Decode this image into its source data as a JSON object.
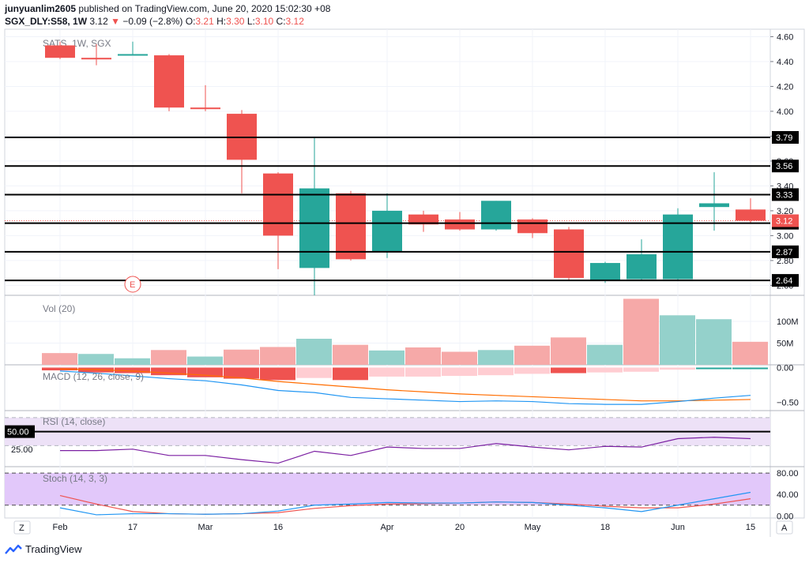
{
  "header": {
    "author": "junyuanlim2605",
    "published_text": "published on TradingView.com, June 20, 2020 15:02:30 +08",
    "symbol": "SGX_DLY:S58, 1W",
    "last": "3.12",
    "change": "−0.09 (−2.8%)",
    "o_label": "O:",
    "o": "3.21",
    "h_label": "H:",
    "h": "3.30",
    "l_label": "L:",
    "l": "3.10",
    "c_label": "C:",
    "c": "3.12"
  },
  "footer": {
    "brand": "TradingView",
    "z_button": "Z",
    "a_button": "A"
  },
  "colors": {
    "up": "#26a69a",
    "down": "#ef5350",
    "vol_up": "#94d1cb",
    "vol_down": "#f6a9a8",
    "macd_line": "#2196f3",
    "signal_line": "#ff6d00",
    "rsi_line": "#7b1fa2",
    "stoch_k": "#2196f3",
    "stoch_d": "#ef5350"
  },
  "chart_data": [
    {
      "type": "candlestick",
      "title": "SATS, 1W, SGX",
      "x": [
        "2020-02-03",
        "2020-02-10",
        "2020-02-17",
        "2020-02-24",
        "2020-03-02",
        "2020-03-09",
        "2020-03-16",
        "2020-03-23",
        "2020-03-30",
        "2020-04-06",
        "2020-04-13",
        "2020-04-20",
        "2020-04-27",
        "2020-05-04",
        "2020-05-11",
        "2020-05-18",
        "2020-05-25",
        "2020-06-01",
        "2020-06-08",
        "2020-06-15"
      ],
      "open": [
        4.53,
        4.43,
        4.46,
        4.45,
        4.03,
        3.98,
        3.5,
        2.74,
        3.34,
        2.87,
        3.17,
        3.13,
        3.05,
        3.13,
        3.05,
        2.64,
        2.65,
        2.65,
        3.23,
        3.21
      ],
      "high": [
        4.56,
        4.54,
        4.56,
        4.46,
        4.21,
        4.01,
        3.51,
        3.79,
        3.36,
        3.34,
        3.2,
        3.19,
        3.28,
        3.14,
        3.07,
        2.79,
        2.97,
        3.22,
        3.51,
        3.3
      ],
      "low": [
        4.42,
        4.37,
        4.45,
        4.0,
        4.0,
        3.34,
        2.73,
        2.52,
        2.8,
        2.82,
        3.03,
        3.04,
        3.04,
        2.98,
        2.64,
        2.62,
        2.64,
        2.64,
        3.04,
        3.1
      ],
      "close": [
        4.43,
        4.42,
        4.46,
        4.03,
        4.02,
        3.61,
        3.0,
        3.38,
        2.81,
        3.2,
        3.09,
        3.05,
        3.28,
        3.02,
        2.66,
        2.78,
        2.85,
        3.17,
        3.26,
        3.12
      ],
      "price_axis_ticks": [
        "4.60",
        "4.40",
        "4.20",
        "4.00",
        "3.80",
        "3.60",
        "3.40",
        "3.20",
        "3.00",
        "2.80",
        "2.60"
      ],
      "ylim": [
        2.52,
        4.66
      ],
      "time_axis_labels": [
        {
          "i": 0,
          "label": "Feb"
        },
        {
          "i": 2,
          "label": "17"
        },
        {
          "i": 4,
          "label": "Mar"
        },
        {
          "i": 6,
          "label": "16"
        },
        {
          "i": 9,
          "label": "Apr"
        },
        {
          "i": 11,
          "label": "20"
        },
        {
          "i": 13,
          "label": "May"
        },
        {
          "i": 15,
          "label": "18"
        },
        {
          "i": 17,
          "label": "Jun"
        },
        {
          "i": 19,
          "label": "15"
        }
      ],
      "horizontal_lines": [
        {
          "value": 3.79,
          "label": "3.79"
        },
        {
          "value": 3.56,
          "label": "3.56"
        },
        {
          "value": 3.33,
          "label": "3.33"
        },
        {
          "value": 3.1,
          "label": "3.10"
        },
        {
          "value": 2.87,
          "label": "2.87"
        },
        {
          "value": 2.64,
          "label": "2.64"
        }
      ],
      "last_price_label": "3.12",
      "earnings_marker": {
        "i": 1,
        "label": "E"
      }
    },
    {
      "type": "bar",
      "title": "Vol (20)",
      "values_millions": [
        27,
        25,
        15,
        34,
        19,
        35,
        41,
        60,
        46,
        33,
        40,
        30,
        34,
        44,
        63,
        46,
        152,
        114,
        105,
        53
      ],
      "direction": [
        "down",
        "up",
        "up",
        "down",
        "up",
        "down",
        "down",
        "up",
        "down",
        "up",
        "down",
        "down",
        "up",
        "down",
        "down",
        "up",
        "down",
        "up",
        "up",
        "down"
      ],
      "axis_ticks": [
        "100M",
        "50M"
      ],
      "ylim": [
        0,
        160
      ]
    },
    {
      "type": "macd",
      "title": "MACD (12, 26, close, 9)",
      "histogram": [
        -0.04,
        -0.07,
        -0.08,
        -0.11,
        -0.14,
        -0.16,
        -0.18,
        -0.15,
        -0.18,
        -0.13,
        -0.13,
        -0.12,
        -0.11,
        -0.09,
        -0.08,
        -0.07,
        -0.06,
        -0.03,
        -0.01,
        -0.01
      ],
      "hist_color": [
        "#ef5350",
        "#ef5350",
        "#ef5350",
        "#ef5350",
        "#ef5350",
        "#ef5350",
        "#ef5350",
        "#ffcdd2",
        "#ef5350",
        "#ffcdd2",
        "#ffcdd2",
        "#ffcdd2",
        "#ffcdd2",
        "#ffcdd2",
        "#ef5350",
        "#ffcdd2",
        "#ffcdd2",
        "#ffcdd2",
        "#26a69a",
        "#26a69a"
      ],
      "macd": [
        -0.05,
        -0.08,
        -0.12,
        -0.16,
        -0.19,
        -0.25,
        -0.33,
        -0.36,
        -0.43,
        -0.45,
        -0.47,
        -0.49,
        -0.48,
        -0.49,
        -0.52,
        -0.53,
        -0.53,
        -0.49,
        -0.44,
        -0.4
      ],
      "signal": [
        -0.02,
        -0.03,
        -0.05,
        -0.08,
        -0.11,
        -0.15,
        -0.2,
        -0.24,
        -0.28,
        -0.32,
        -0.35,
        -0.38,
        -0.4,
        -0.42,
        -0.44,
        -0.46,
        -0.48,
        -0.48,
        -0.47,
        -0.46
      ],
      "axis_ticks": [
        "0.00",
        "−0.50"
      ],
      "ylim": [
        -0.62,
        0.04
      ]
    },
    {
      "type": "line",
      "title": "RSI (14, close)",
      "values": [
        23,
        23,
        25,
        16,
        16,
        10,
        5,
        22,
        16,
        28,
        26,
        26,
        33,
        28,
        24,
        29,
        28,
        40,
        42,
        40
      ],
      "axis_ticks": [
        "50.00",
        "25.00"
      ],
      "band_upper": 70,
      "band_lower": 30,
      "highlight_level": 50,
      "ylim": [
        0,
        80
      ]
    },
    {
      "type": "line",
      "title": "Stoch (14, 3, 3)",
      "k": [
        15,
        2,
        4,
        4,
        3,
        4,
        9,
        20,
        22,
        25,
        24,
        24,
        26,
        25,
        20,
        15,
        8,
        20,
        32,
        44
      ],
      "d": [
        38,
        22,
        8,
        4,
        3,
        4,
        6,
        14,
        19,
        22,
        23,
        24,
        26,
        25,
        22,
        18,
        15,
        15,
        22,
        32
      ],
      "axis_ticks": [
        "80.00",
        "40.00",
        "0.00"
      ],
      "band_upper": 80,
      "band_lower": 20,
      "ylim": [
        -4,
        92
      ]
    }
  ]
}
